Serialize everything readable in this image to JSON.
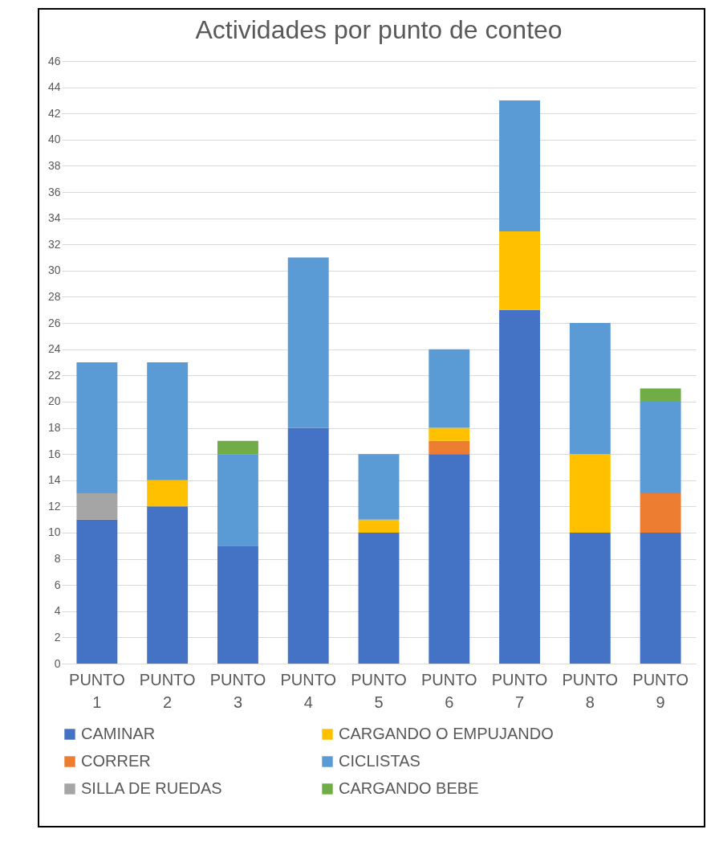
{
  "chart_data": {
    "type": "bar",
    "title": "Actividades por punto de conteo",
    "stacked": true,
    "categories": [
      "PUNTO 1",
      "PUNTO 2",
      "PUNTO 3",
      "PUNTO 4",
      "PUNTO 5",
      "PUNTO 6",
      "PUNTO 7",
      "PUNTO 8",
      "PUNTO 9"
    ],
    "series": [
      {
        "name": "CAMINAR",
        "color": "#4472c4",
        "values": [
          11,
          12,
          9,
          18,
          10,
          16,
          27,
          10,
          10
        ]
      },
      {
        "name": "CORRER",
        "color": "#ed7d31",
        "values": [
          null,
          null,
          null,
          null,
          null,
          1,
          null,
          null,
          3
        ]
      },
      {
        "name": "SILLA DE RUEDAS",
        "color": "#a5a5a5",
        "values": [
          2,
          null,
          null,
          null,
          null,
          null,
          null,
          null,
          null
        ]
      },
      {
        "name": "CARGANDO O EMPUJANDO",
        "color": "#ffc000",
        "values": [
          null,
          2,
          null,
          null,
          1,
          1,
          6,
          6,
          null
        ]
      },
      {
        "name": "CICLISTAS",
        "color": "#5b9bd5",
        "values": [
          10,
          9,
          7,
          13,
          5,
          6,
          10,
          10,
          7
        ]
      },
      {
        "name": "CARGANDO BEBE",
        "color": "#70ad47",
        "values": [
          null,
          null,
          1,
          null,
          null,
          null,
          null,
          null,
          1
        ]
      }
    ],
    "ylim": [
      0,
      46
    ],
    "yticks": [
      0,
      2,
      4,
      6,
      8,
      10,
      12,
      14,
      16,
      18,
      20,
      22,
      24,
      26,
      28,
      30,
      32,
      34,
      36,
      38,
      40,
      42,
      44,
      46
    ],
    "grid": "y",
    "legend": "bottom"
  }
}
